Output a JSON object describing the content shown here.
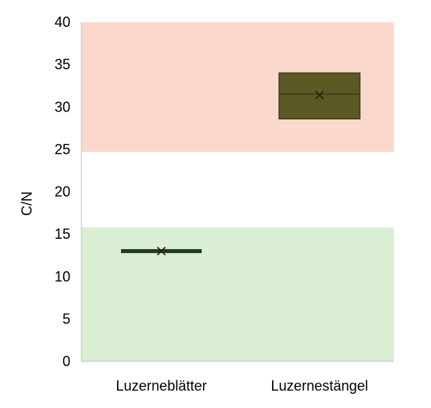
{
  "chart_data": {
    "type": "box",
    "title": "",
    "xlabel": "",
    "ylabel": "C/N",
    "ylim": [
      0,
      40
    ],
    "yticks": [
      0,
      5,
      10,
      15,
      20,
      25,
      30,
      35,
      40
    ],
    "ytick_labels": [
      "0",
      "5",
      "10",
      "15",
      "20",
      "25",
      "30",
      "35",
      "40"
    ],
    "categories": [
      "Luzerneblätter",
      "Luzernestängel"
    ],
    "boxes": [
      {
        "category": "Luzerneblätter",
        "q1": 12.9,
        "median": 13.0,
        "q3": 13.1,
        "mean": 13.0
      },
      {
        "category": "Luzernestängel",
        "q1": 28.6,
        "median": 31.5,
        "q3": 34.0,
        "mean": 31.4
      }
    ],
    "bands": [
      {
        "from": 24.7,
        "to": 40,
        "color": "#fad9cc"
      },
      {
        "from": 0,
        "to": 15.8,
        "color": "#daeed3"
      }
    ],
    "box_fill": "#5b5a25",
    "box_stroke": "#3d3b19",
    "thin_box_color": "#1f3a1f",
    "grid": false
  }
}
